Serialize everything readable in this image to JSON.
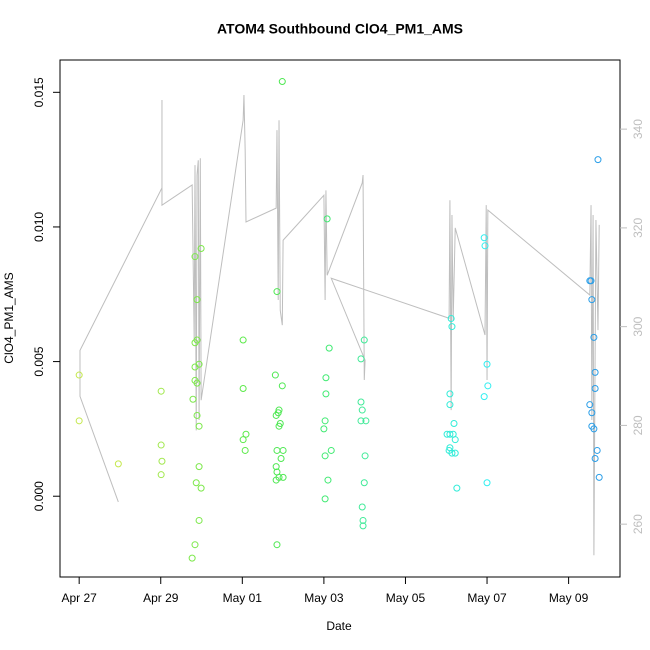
{
  "chart_data": {
    "type": "scatter",
    "title": "ATOM4 Southbound ClO4_PM1_AMS",
    "xlabel": "Date",
    "ylabel": "ClO4_PM1_AMS",
    "xlim": [
      -0.47,
      13.26
    ],
    "ylim": [
      -0.003,
      0.0162
    ],
    "y2lim": [
      249.3,
      354
    ],
    "xticks": [
      {
        "value": 0,
        "label": "Apr 27"
      },
      {
        "value": 2,
        "label": "Apr 29"
      },
      {
        "value": 4,
        "label": "May 01"
      },
      {
        "value": 6,
        "label": "May 03"
      },
      {
        "value": 8,
        "label": "May 05"
      },
      {
        "value": 10,
        "label": "May 07"
      },
      {
        "value": 12,
        "label": "May 09"
      }
    ],
    "yticks": [
      {
        "value": 0,
        "label": "0.000"
      },
      {
        "value": 0.005,
        "label": "0.005"
      },
      {
        "value": 0.01,
        "label": "0.010"
      },
      {
        "value": 0.015,
        "label": "0.015"
      }
    ],
    "y2ticks": [
      260,
      280,
      300,
      320,
      340
    ],
    "y2color": "#bebebe",
    "series": [
      {
        "color": "#c4e84c",
        "x": [
          0,
          0,
          0.96
        ],
        "values": [
          0.0045,
          0.0028,
          0.0012
        ]
      },
      {
        "color": "#a2e84e",
        "x": [
          2.01,
          2.01,
          2.03,
          2.01
        ],
        "values": [
          0.0039,
          0.0019,
          0.0013,
          0.0008
        ]
      },
      {
        "color": "#7ce84a",
        "x": [
          2.84,
          2.89,
          2.84,
          2.89,
          2.84,
          2.94,
          2.84,
          2.89,
          2.79,
          2.89,
          2.94,
          2.99,
          2.94,
          2.87,
          2.99,
          2.94,
          2.84,
          2.77
        ],
        "values": [
          0.0089,
          0.0073,
          0.0057,
          0.0058,
          0.0048,
          0.0049,
          0.0043,
          0.0042,
          0.0036,
          0.003,
          0.0026,
          0.0092,
          0.0011,
          0.0005,
          0.0003,
          -0.0009,
          -0.0018,
          -0.0023
        ]
      },
      {
        "color": "#5cea4a",
        "x": [
          4.02,
          4.02,
          4.09,
          4.02,
          4.07
        ],
        "values": [
          0.0058,
          0.004,
          0.0023,
          0.0021,
          0.0017
        ]
      },
      {
        "color": "#4ee852",
        "x": [
          4.85,
          4.81,
          4.98,
          4.98,
          4.9,
          4.88,
          4.83,
          4.93,
          4.9,
          4.85,
          5.0,
          4.95,
          4.83,
          4.85,
          4.9,
          5.0,
          4.83,
          4.85
        ],
        "values": [
          0.0076,
          0.0045,
          0.0041,
          0.0154,
          0.0032,
          0.0031,
          0.003,
          0.0027,
          0.0026,
          0.0017,
          0.0017,
          0.0014,
          0.0011,
          0.0009,
          0.0007,
          0.0007,
          0.0006,
          -0.0018
        ]
      },
      {
        "color": "#40ea72",
        "x": [
          6.08,
          6.13,
          6.05,
          6.05,
          6.03,
          6.0,
          6.18,
          6.03,
          6.1,
          6.03
        ],
        "values": [
          0.0103,
          0.0055,
          0.0044,
          0.0038,
          0.0028,
          0.0025,
          0.0017,
          0.0015,
          0.0006,
          -0.0001
        ]
      },
      {
        "color": "#40ea98",
        "x": [
          6.99,
          6.91,
          6.91,
          6.94,
          6.91,
          7.03,
          7.01,
          6.99,
          6.94,
          6.96,
          6.96
        ],
        "values": [
          0.0058,
          0.0051,
          0.0035,
          0.0032,
          0.0028,
          0.0028,
          0.0015,
          0.0005,
          -0.0004,
          -0.0009,
          -0.0011
        ]
      },
      {
        "color": "#30ecd8",
        "x": [
          9.12,
          9.14,
          9.09,
          9.09,
          9.19,
          9.09,
          9.02,
          9.17,
          9.22,
          9.09,
          9.07,
          9.14,
          9.22,
          9.26
        ],
        "values": [
          0.0066,
          0.0063,
          0.0038,
          0.0034,
          0.0027,
          0.0023,
          0.0023,
          0.0023,
          0.0021,
          0.0018,
          0.0017,
          0.0016,
          0.0016,
          0.0003
        ]
      },
      {
        "color": "#30eef0",
        "x": [
          9.93,
          9.95,
          10.0,
          10.02,
          9.93,
          10.0
        ],
        "values": [
          0.0096,
          0.0093,
          0.0049,
          0.0041,
          0.0037,
          0.0005
        ]
      },
      {
        "color": "#2a9ee8",
        "x": [
          12.72,
          12.52,
          12.55,
          12.57,
          12.62,
          12.65,
          12.65,
          12.52,
          12.57,
          12.57,
          12.62,
          12.7,
          12.65,
          12.75
        ],
        "values": [
          0.0125,
          0.008,
          0.008,
          0.0073,
          0.0059,
          0.0046,
          0.004,
          0.0034,
          0.0031,
          0.0026,
          0.0025,
          0.0017,
          0.0014,
          0.0007
        ]
      },
      {
        "type": "line",
        "axis": "y2",
        "color": "#bebebe",
        "x": [
          0.96,
          0.02,
          0.02,
          2.03,
          2.03,
          2.03,
          2.77,
          2.82,
          2.84,
          2.87,
          2.89,
          2.92,
          2.94,
          2.97,
          2.99,
          4.02,
          4.04,
          4.07,
          4.09,
          4.83,
          4.85,
          4.88,
          4.9,
          4.93,
          4.98,
          5.0,
          6.0,
          6.03,
          6.05,
          6.08,
          6.94,
          6.96,
          6.99,
          7.01,
          6.18,
          9.07,
          9.09,
          9.12,
          9.14,
          9.17,
          9.22,
          9.95,
          9.98,
          10.0,
          10.02,
          12.52,
          12.55,
          12.57,
          12.6,
          12.62,
          12.67,
          12.72,
          12.75
        ],
        "values": [
          264.5,
          285.9,
          295.2,
          328.1,
          345.9,
          324.6,
          328.7,
          297.3,
          332.7,
          279.0,
          330.7,
          333.7,
          281.1,
          334.1,
          285.1,
          341.8,
          346.9,
          335.7,
          321.2,
          324.0,
          339.8,
          305.4,
          341.8,
          303.3,
          300.3,
          317.5,
          326.6,
          305.4,
          327.6,
          310.4,
          329.1,
          330.7,
          289.2,
          293.2,
          309.8,
          301.7,
          325.6,
          283.1,
          322.6,
          301.3,
          320.0,
          298.3,
          324.6,
          289.2,
          323.6,
          306.4,
          324.6,
          281.1,
          322.6,
          253.7,
          321.6,
          299.3,
          320.6
        ]
      }
    ]
  }
}
